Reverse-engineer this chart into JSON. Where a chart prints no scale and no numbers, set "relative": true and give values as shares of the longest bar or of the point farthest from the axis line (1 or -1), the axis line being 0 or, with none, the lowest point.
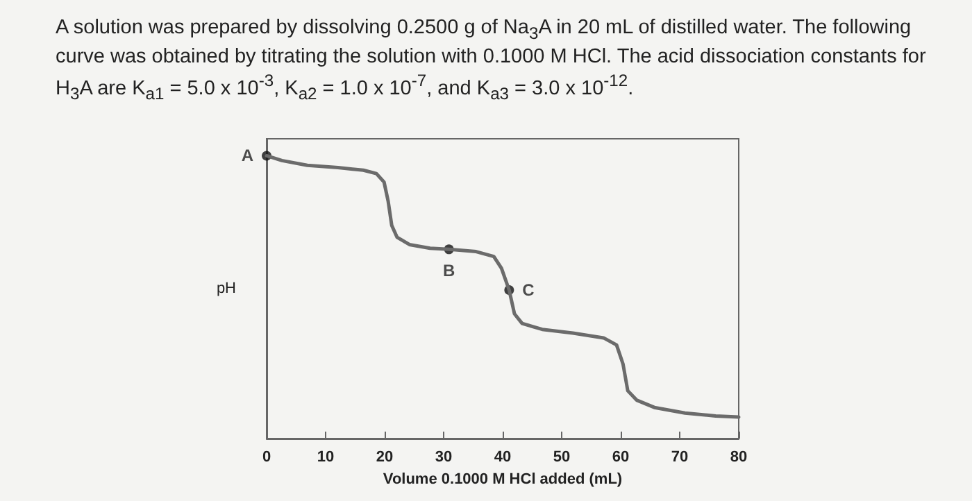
{
  "chart_data": {
    "type": "line",
    "relative": true,
    "title": "A solution was prepared by dissolving 0.2500 g of Na$_{3}$A in 20 mL of distilled water.  The following curve was obtained by titrating the solution with 0.1000 M HCl.  The acid dissociation constants for H$_{3}$A are K$_{a1}$ = 5.0 x 10$^{-3}$, K$_{a2}$ = 1.0 x 10$^{-7}$, and K$_{a3}$ = 3.0 x 10$^{-12}$.",
    "xlabel": "Volume 0.1000 M HCl added (mL)",
    "ylabel": "pH",
    "xlim": [
      0,
      80
    ],
    "xticks": [
      0,
      10,
      20,
      30,
      40,
      50,
      60,
      70,
      80
    ],
    "marker": "none",
    "line_style": "solid",
    "series": [
      {
        "color": "#6b6b6b",
        "x": [
          0,
          2.6,
          6.9,
          12.1,
          16.4,
          18.6,
          19.9,
          20.6,
          21.2,
          22.1,
          24.2,
          27.7,
          30.9,
          35.5,
          38.5,
          39.8,
          41.1,
          42.0,
          43.3,
          46.7,
          51.9,
          57.1,
          59.3,
          60.4,
          61.2,
          62.7,
          65.7,
          70.9,
          76.1,
          80
        ],
        "values": [
          1.0,
          0.983,
          0.966,
          0.958,
          0.949,
          0.937,
          0.907,
          0.839,
          0.754,
          0.712,
          0.686,
          0.673,
          0.669,
          0.661,
          0.644,
          0.602,
          0.525,
          0.441,
          0.407,
          0.386,
          0.373,
          0.356,
          0.331,
          0.263,
          0.169,
          0.136,
          0.11,
          0.09,
          0.08,
          0.076
        ]
      }
    ],
    "annotations": [
      {
        "text": "A",
        "x": 0,
        "y": 1.0
      },
      {
        "text": "B",
        "x": 30.9,
        "y": 0.669
      },
      {
        "text": "C",
        "x": 41.1,
        "y": 0.525
      }
    ]
  }
}
